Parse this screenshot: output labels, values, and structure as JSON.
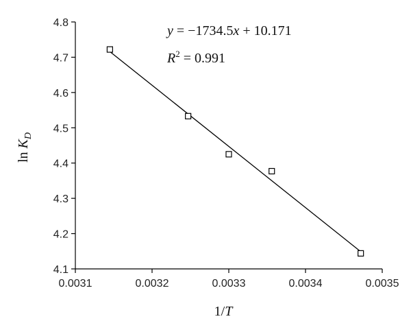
{
  "chart_data": {
    "type": "scatter",
    "title": "",
    "xlabel_main": "1/",
    "xlabel_var": "T",
    "ylabel_main": "ln ",
    "ylabel_var": "K",
    "ylabel_sub": "D",
    "xlim": [
      0.0031,
      0.0035
    ],
    "ylim": [
      4.1,
      4.8
    ],
    "xticks": [
      0.0031,
      0.0032,
      0.0033,
      0.0034,
      0.0035
    ],
    "xtick_labels": [
      "0.0031",
      "0.0032",
      "0.0033",
      "0.0034",
      "0.0035"
    ],
    "yticks": [
      4.1,
      4.2,
      4.3,
      4.4,
      4.5,
      4.6,
      4.7,
      4.8
    ],
    "ytick_labels": [
      "4.1",
      "4.2",
      "4.3",
      "4.4",
      "4.5",
      "4.6",
      "4.7",
      "4.8"
    ],
    "grid": false,
    "points": [
      {
        "x": 0.003145,
        "y": 4.722
      },
      {
        "x": 0.003247,
        "y": 4.533
      },
      {
        "x": 0.0033,
        "y": 4.425
      },
      {
        "x": 0.003356,
        "y": 4.377
      },
      {
        "x": 0.003472,
        "y": 4.144
      }
    ],
    "fit": {
      "slope": -1734.5,
      "intercept": 10.171,
      "x_from": 0.003145,
      "x_to": 0.003472
    },
    "annotations": {
      "equation_y": "y",
      "equation_rest": " = −1734.5",
      "equation_x": "x",
      "equation_tail": " + 10.171",
      "r2_r": "R",
      "r2_sup": "2",
      "r2_value": " = 0.991"
    }
  }
}
